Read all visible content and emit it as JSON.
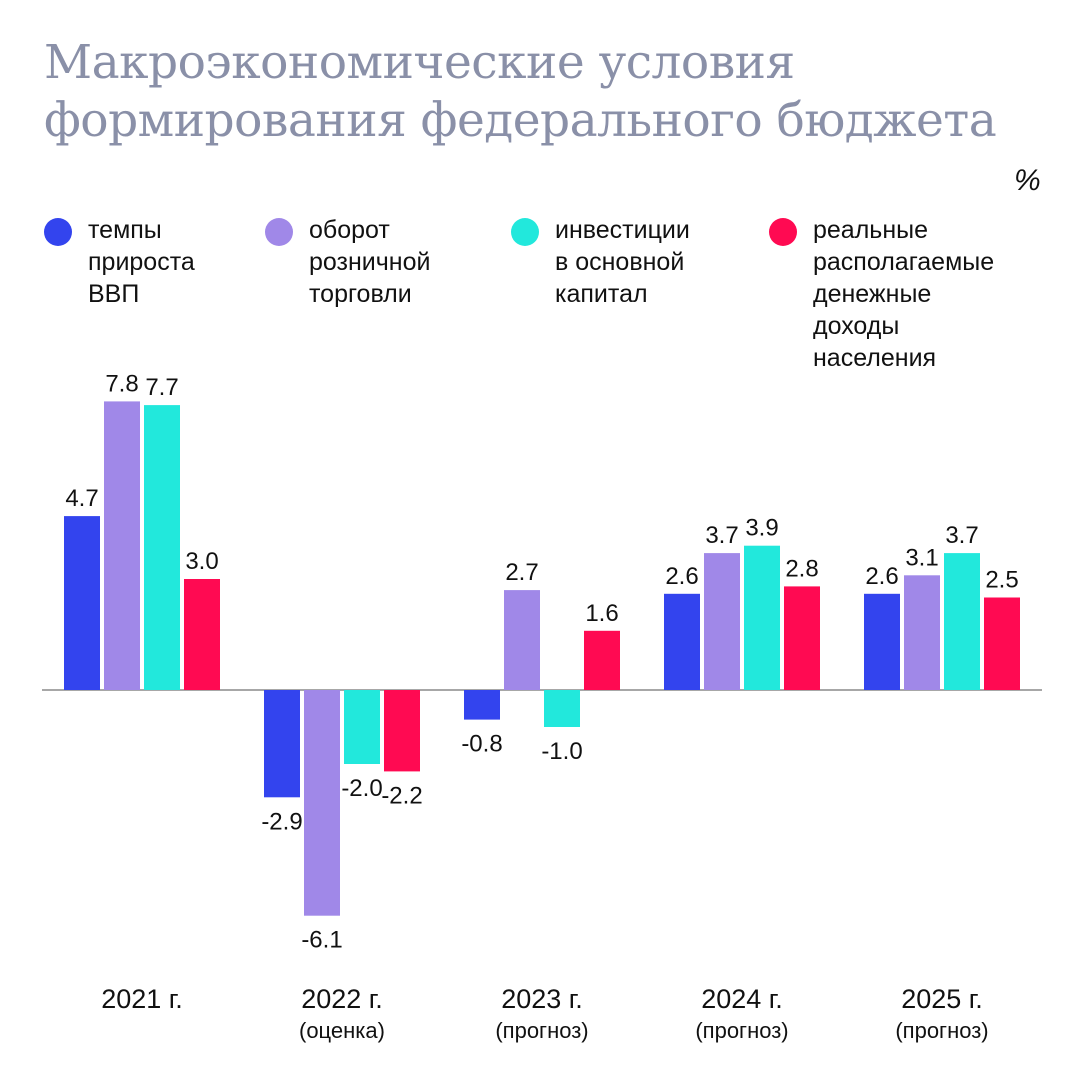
{
  "title": "Макроэкономические условия формирования федерального бюджета",
  "unit": "%",
  "legend": [
    {
      "label": "темпы\nприроста\nВВП",
      "color": "#3344ee"
    },
    {
      "label": "оборот\nрозничной\nторговли",
      "color": "#a088e8"
    },
    {
      "label": "инвестиции\nв основной\nкапитал",
      "color": "#22e8dc"
    },
    {
      "label": "реальные\nрасполагаемые\nденежные\nдоходы\nнаселения",
      "color": "#ff0a52"
    }
  ],
  "categories": [
    {
      "year": "2021 г.",
      "sub": ""
    },
    {
      "year": "2022 г.",
      "sub": "(оценка)"
    },
    {
      "year": "2023 г.",
      "sub": "(прогноз)"
    },
    {
      "year": "2024 г.",
      "sub": "(прогноз)"
    },
    {
      "year": "2025 г.",
      "sub": "(прогноз)"
    }
  ],
  "chart_data": {
    "type": "bar",
    "title": "Макроэкономические условия формирования федерального бюджета",
    "ylabel": "%",
    "categories": [
      "2021 г.",
      "2022 г. (оценка)",
      "2023 г. (прогноз)",
      "2024 г. (прогноз)",
      "2025 г. (прогноз)"
    ],
    "series": [
      {
        "name": "темпы прироста ВВП",
        "color": "#3344ee",
        "values": [
          4.7,
          -2.9,
          -0.8,
          2.6,
          2.6
        ]
      },
      {
        "name": "оборот розничной торговли",
        "color": "#a088e8",
        "values": [
          7.8,
          -6.1,
          2.7,
          3.7,
          3.1
        ]
      },
      {
        "name": "инвестиции в основной капитал",
        "color": "#22e8dc",
        "values": [
          7.7,
          -2.0,
          -1.0,
          3.9,
          3.7
        ]
      },
      {
        "name": "реальные располагаемые денежные доходы населения",
        "color": "#ff0a52",
        "values": [
          3.0,
          -2.2,
          1.6,
          2.8,
          2.5
        ]
      }
    ],
    "labels": [
      [
        "4.7",
        "-2.9",
        "-0.8",
        "2.6",
        "2.6"
      ],
      [
        "7.8",
        "-6.1",
        "2.7",
        "3.7",
        "3.1"
      ],
      [
        "7.7",
        "-2.0",
        "-1.0",
        "3.9",
        "3.7"
      ],
      [
        "3.0",
        "-2.2",
        "1.6",
        "2.8",
        "2.5"
      ]
    ],
    "ylim": [
      -6.1,
      7.8
    ]
  }
}
